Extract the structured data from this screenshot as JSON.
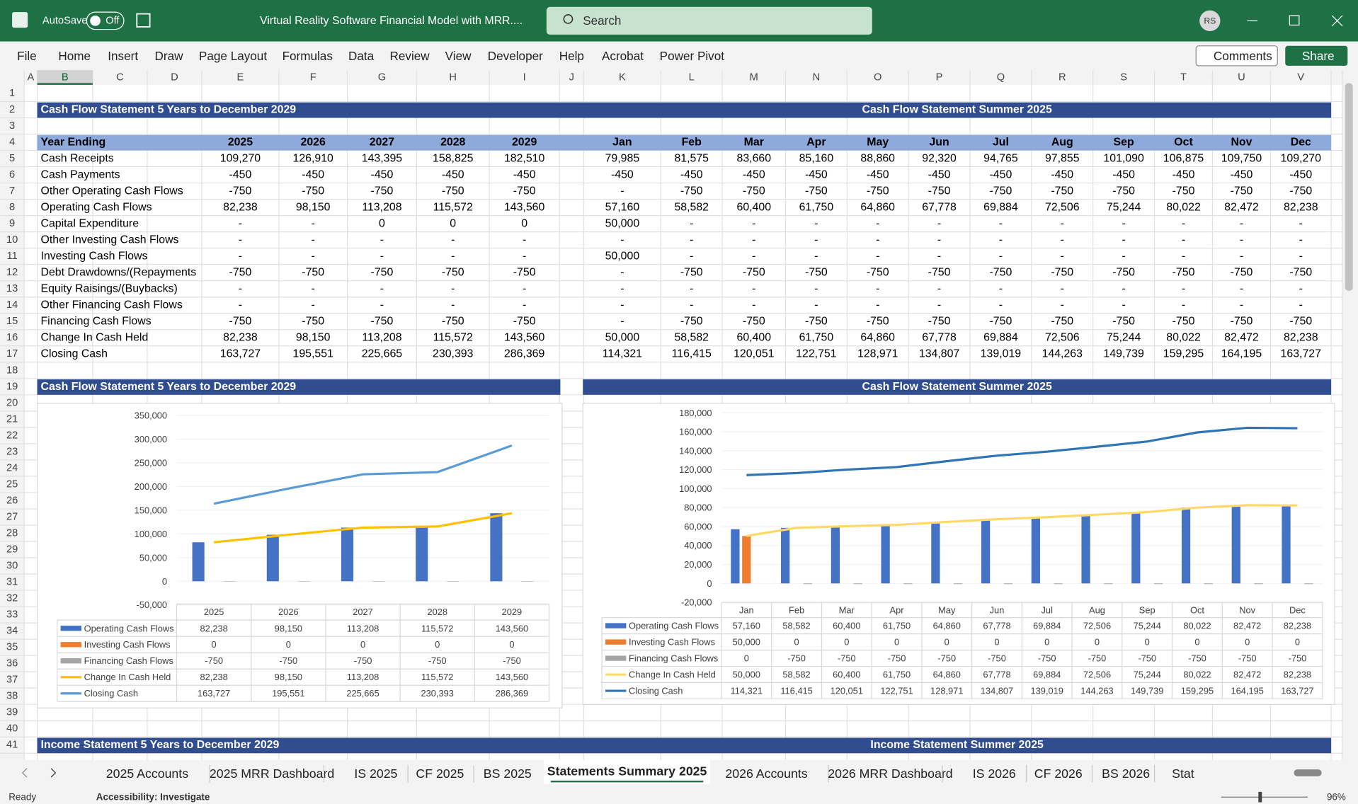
{
  "app": {
    "autosave": "AutoSave",
    "autosave_state": "Off",
    "document_title": "Virtual Reality Software Financial Model with MRR....",
    "search": "Search",
    "user": "RS"
  },
  "ribbon": {
    "tabs": [
      "File",
      "Home",
      "Insert",
      "Draw",
      "Page Layout",
      "Formulas",
      "Data",
      "Review",
      "View",
      "Developer",
      "Help",
      "Acrobat",
      "Power Pivot"
    ],
    "comments": "Comments",
    "share": "Share"
  },
  "columns": [
    "A",
    "B",
    "C",
    "D",
    "E",
    "F",
    "G",
    "H",
    "I",
    "J",
    "K",
    "L",
    "M",
    "N",
    "O",
    "P",
    "Q",
    "R",
    "S",
    "T",
    "U",
    "V"
  ],
  "rows": [
    1,
    2,
    3,
    4,
    5,
    6,
    7,
    8,
    9,
    10,
    11,
    12,
    13,
    14,
    15,
    16,
    17,
    18,
    19,
    20,
    21,
    22,
    23,
    24,
    25,
    26,
    27,
    28,
    29,
    30,
    31,
    32,
    33,
    34,
    35,
    36,
    37,
    38,
    39,
    40,
    41
  ],
  "cf_5yr": {
    "title": "Cash Flow Statement 5 Years to December 2029",
    "header": [
      "Year Ending",
      "2025",
      "2026",
      "2027",
      "2028",
      "2029"
    ],
    "rows": [
      [
        "Cash Receipts",
        "109,270",
        "126,910",
        "143,395",
        "158,825",
        "182,510"
      ],
      [
        "Cash Payments",
        "-450",
        "-450",
        "-450",
        "-450",
        "-450"
      ],
      [
        "Other Operating Cash Flows",
        "-750",
        "-750",
        "-750",
        "-750",
        "-750"
      ],
      [
        "Operating Cash Flows",
        "82,238",
        "98,150",
        "113,208",
        "115,572",
        "143,560"
      ],
      [
        "Capital Expenditure",
        "-",
        "-",
        "0",
        "0",
        "0"
      ],
      [
        "Other Investing Cash Flows",
        "-",
        "-",
        "-",
        "-",
        "-"
      ],
      [
        "Investing Cash Flows",
        "-",
        "-",
        "-",
        "-",
        "-"
      ],
      [
        "Debt Drawdowns/(Repayments",
        "-750",
        "-750",
        "-750",
        "-750",
        "-750"
      ],
      [
        "Equity Raisings/(Buybacks)",
        "-",
        "-",
        "-",
        "-",
        "-"
      ],
      [
        "Other Financing Cash Flows",
        "-",
        "-",
        "-",
        "-",
        "-"
      ],
      [
        "Financing Cash Flows",
        "-750",
        "-750",
        "-750",
        "-750",
        "-750"
      ],
      [
        "Change In Cash Held",
        "82,238",
        "98,150",
        "113,208",
        "115,572",
        "143,560"
      ],
      [
        "Closing Cash",
        "163,727",
        "195,551",
        "225,665",
        "230,393",
        "286,369"
      ]
    ]
  },
  "cf_monthly": {
    "title": "Cash Flow Statement Summer 2025",
    "header": [
      "Jan",
      "Feb",
      "Mar",
      "Apr",
      "May",
      "Jun",
      "Jul",
      "Aug",
      "Sep",
      "Oct",
      "Nov",
      "Dec"
    ],
    "rows": [
      [
        "79,985",
        "81,575",
        "83,660",
        "85,160",
        "88,860",
        "92,320",
        "94,765",
        "97,855",
        "101,090",
        "106,875",
        "109,750",
        "109,270"
      ],
      [
        "-450",
        "-450",
        "-450",
        "-450",
        "-450",
        "-450",
        "-450",
        "-450",
        "-450",
        "-450",
        "-450",
        "-450"
      ],
      [
        "-",
        "-750",
        "-750",
        "-750",
        "-750",
        "-750",
        "-750",
        "-750",
        "-750",
        "-750",
        "-750",
        "-750"
      ],
      [
        "57,160",
        "58,582",
        "60,400",
        "61,750",
        "64,860",
        "67,778",
        "69,884",
        "72,506",
        "75,244",
        "80,022",
        "82,472",
        "82,238"
      ],
      [
        "50,000",
        "-",
        "-",
        "-",
        "-",
        "-",
        "-",
        "-",
        "-",
        "-",
        "-",
        "-"
      ],
      [
        "-",
        "-",
        "-",
        "-",
        "-",
        "-",
        "-",
        "-",
        "-",
        "-",
        "-",
        "-"
      ],
      [
        "50,000",
        "-",
        "-",
        "-",
        "-",
        "-",
        "-",
        "-",
        "-",
        "-",
        "-",
        "-"
      ],
      [
        "-",
        "-750",
        "-750",
        "-750",
        "-750",
        "-750",
        "-750",
        "-750",
        "-750",
        "-750",
        "-750",
        "-750"
      ],
      [
        "-",
        "-",
        "-",
        "-",
        "-",
        "-",
        "-",
        "-",
        "-",
        "-",
        "-",
        "-"
      ],
      [
        "-",
        "-",
        "-",
        "-",
        "-",
        "-",
        "-",
        "-",
        "-",
        "-",
        "-",
        "-"
      ],
      [
        "-",
        "-750",
        "-750",
        "-750",
        "-750",
        "-750",
        "-750",
        "-750",
        "-750",
        "-750",
        "-750",
        "-750"
      ],
      [
        "50,000",
        "58,582",
        "60,400",
        "61,750",
        "64,860",
        "67,778",
        "69,884",
        "72,506",
        "75,244",
        "80,022",
        "82,472",
        "82,238"
      ],
      [
        "114,321",
        "116,415",
        "120,051",
        "122,751",
        "128,971",
        "134,807",
        "139,019",
        "144,263",
        "149,739",
        "159,295",
        "164,195",
        "163,727"
      ]
    ]
  },
  "income_titles": [
    "Income Statement 5 Years to December 2029",
    "Income Statement Summer 2025"
  ],
  "chart_data": [
    {
      "type": "combo",
      "title": "Cash Flow Statement 5 Years to December 2029",
      "categories": [
        "2025",
        "2026",
        "2027",
        "2028",
        "2029"
      ],
      "ylim": [
        -50000,
        350000
      ],
      "yticks": [
        {
          "value": -50000,
          "label": "-50,000"
        },
        0,
        {
          "value": 50000,
          "label": "50,000"
        },
        {
          "value": 100000,
          "label": "100,000"
        },
        {
          "value": 150000,
          "label": "150,000"
        },
        {
          "value": 200000,
          "label": "200,000"
        },
        {
          "value": 250000,
          "label": "250,000"
        },
        {
          "value": 300000,
          "label": "300,000"
        },
        {
          "value": 350000,
          "label": "350,000"
        }
      ],
      "series": [
        {
          "name": "Operating Cash Flows",
          "kind": "bar",
          "color": "#4472c4",
          "values": [
            82238,
            98150,
            113208,
            115572,
            143560
          ],
          "value_labels": [
            "82,238",
            "98,150",
            "113,208",
            "115,572",
            "143,560"
          ]
        },
        {
          "name": "Investing Cash Flows",
          "kind": "bar",
          "color": "#ed7d31",
          "values": [
            0,
            0,
            0,
            0,
            0
          ]
        },
        {
          "name": "Financing Cash Flows",
          "kind": "bar",
          "color": "#a5a5a5",
          "values": [
            -750,
            -750,
            -750,
            -750,
            -750
          ]
        },
        {
          "name": "Change In Cash Held",
          "kind": "line",
          "color": "#ffc000",
          "values": [
            82238,
            98150,
            113208,
            115572,
            143560
          ],
          "value_labels": [
            "82,238",
            "98,150",
            "113,208",
            "115,572",
            "143,560"
          ]
        },
        {
          "name": "Closing Cash",
          "kind": "line",
          "color": "#5b9bd5",
          "values": [
            163727,
            195551,
            225665,
            230393,
            286369
          ],
          "value_labels": [
            "163,727",
            "195,551",
            "225,665",
            "230,393",
            "286,369"
          ]
        }
      ]
    },
    {
      "type": "combo",
      "title": "Cash Flow Statement Summer 2025",
      "categories": [
        "Jan",
        "Feb",
        "Mar",
        "Apr",
        "May",
        "Jun",
        "Jul",
        "Aug",
        "Sep",
        "Oct",
        "Nov",
        "Dec"
      ],
      "ylim": [
        -20000,
        180000
      ],
      "yticks": [
        {
          "value": -20000,
          "label": "-20,000"
        },
        0,
        {
          "value": 20000,
          "label": "20,000"
        },
        {
          "value": 40000,
          "label": "40,000"
        },
        {
          "value": 60000,
          "label": "60,000"
        },
        {
          "value": 80000,
          "label": "80,000"
        },
        {
          "value": 100000,
          "label": "100,000"
        },
        {
          "value": 120000,
          "label": "120,000"
        },
        {
          "value": 140000,
          "label": "140,000"
        },
        {
          "value": 160000,
          "label": "160,000"
        },
        {
          "value": 180000,
          "label": "180,000"
        }
      ],
      "series": [
        {
          "name": "Operating Cash Flows",
          "kind": "bar",
          "color": "#4472c4",
          "values": [
            57160,
            58582,
            60400,
            61750,
            64860,
            67778,
            69884,
            72506,
            75244,
            80022,
            82472,
            82238
          ],
          "value_labels": [
            "57,160",
            "58,582",
            "60,400",
            "61,750",
            "64,860",
            "67,778",
            "69,884",
            "72,506",
            "75,244",
            "80,022",
            "82,472",
            "82,238"
          ]
        },
        {
          "name": "Investing Cash Flows",
          "kind": "bar",
          "color": "#ed7d31",
          "values": [
            50000,
            0,
            0,
            0,
            0,
            0,
            0,
            0,
            0,
            0,
            0,
            0
          ],
          "value_labels": [
            "50,000",
            "0",
            "0",
            "0",
            "0",
            "0",
            "0",
            "0",
            "0",
            "0",
            "0",
            "0"
          ]
        },
        {
          "name": "Financing Cash Flows",
          "kind": "bar",
          "color": "#a5a5a5",
          "values": [
            0,
            -750,
            -750,
            -750,
            -750,
            -750,
            -750,
            -750,
            -750,
            -750,
            -750,
            -750
          ]
        },
        {
          "name": "Change In Cash Held",
          "kind": "line",
          "color": "#ffd966",
          "values": [
            50000,
            58582,
            60400,
            61750,
            64860,
            67778,
            69884,
            72506,
            75244,
            80022,
            82472,
            82238
          ],
          "value_labels": [
            "50,000",
            "58,582",
            "60,400",
            "61,750",
            "64,860",
            "67,778",
            "69,884",
            "72,506",
            "75,244",
            "80,022",
            "82,472",
            "82,238"
          ]
        },
        {
          "name": "Closing Cash",
          "kind": "line",
          "color": "#2e75b6",
          "values": [
            114321,
            116415,
            120051,
            122751,
            128971,
            134807,
            139019,
            144263,
            149739,
            159295,
            164195,
            163727
          ],
          "value_labels": [
            "114,321",
            "116,415",
            "120,051",
            "122,751",
            "128,971",
            "134,807",
            "139,019",
            "144,263",
            "149,739",
            "159,295",
            "164,195",
            "163,727"
          ]
        }
      ]
    }
  ],
  "sheet_tabs": [
    "2025 Accounts",
    "2025 MRR Dashboard",
    "IS 2025",
    "CF 2025",
    "BS 2025",
    "Statements Summary 2025",
    "2026 Accounts",
    "2026 MRR Dashboard",
    "IS 2026",
    "CF 2026",
    "BS 2026",
    "Stat"
  ],
  "active_tab": 5,
  "status": {
    "ready": "Ready",
    "accessibility": "Accessibility: Investigate",
    "zoom": "96%"
  }
}
